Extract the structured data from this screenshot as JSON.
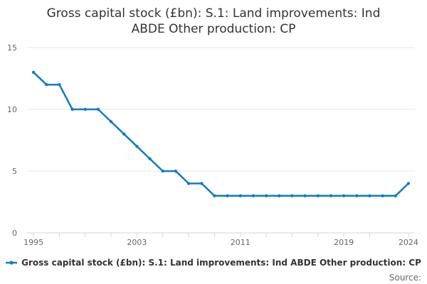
{
  "title_lines": [
    "Gross capital stock (£bn): S.1: Land improvements: Ind",
    "ABDE Other production: CP"
  ],
  "legend": {
    "label": "Gross capital stock (£bn): S.1: Land improvements: Ind ABDE Other production: CP"
  },
  "source_label": "Source:",
  "colors": {
    "line": "#117cbe",
    "grid": "#e6e6e6",
    "axis": "#ccd6eb",
    "tick_text": "#666666",
    "title_text": "#333333"
  },
  "chart_data": {
    "type": "line",
    "title": "Gross capital stock (£bn): S.1: Land improvements: Ind ABDE Other production: CP",
    "xlabel": "",
    "ylabel": "",
    "grid": true,
    "legend_position": "bottom",
    "series_name": "Gross capital stock (£bn): S.1: Land improvements: Ind ABDE Other production: CP",
    "x": [
      1995,
      1996,
      1997,
      1998,
      1999,
      2000,
      2001,
      2002,
      2003,
      2004,
      2005,
      2006,
      2007,
      2008,
      2009,
      2010,
      2011,
      2012,
      2013,
      2014,
      2015,
      2016,
      2017,
      2018,
      2019,
      2020,
      2021,
      2022,
      2023,
      2024
    ],
    "values": [
      13,
      12,
      12,
      10,
      10,
      10,
      9,
      8,
      7,
      6,
      5,
      5,
      4,
      4,
      3,
      3,
      3,
      3,
      3,
      3,
      3,
      3,
      3,
      3,
      3,
      3,
      3,
      3,
      3,
      4
    ],
    "x_axis": {
      "min": 1994.5,
      "max": 2024.5,
      "tick_positions": [
        1995,
        1997,
        1999,
        2001,
        2003,
        2005,
        2007,
        2009,
        2011,
        2013,
        2015,
        2017,
        2019,
        2021,
        2024
      ],
      "label_ticks": [
        "1995",
        "2003",
        "2011",
        "2019",
        "2024"
      ]
    },
    "y_axis": {
      "min": 0,
      "max": 15,
      "ticks": [
        "0",
        "5",
        "10",
        "15"
      ]
    }
  }
}
